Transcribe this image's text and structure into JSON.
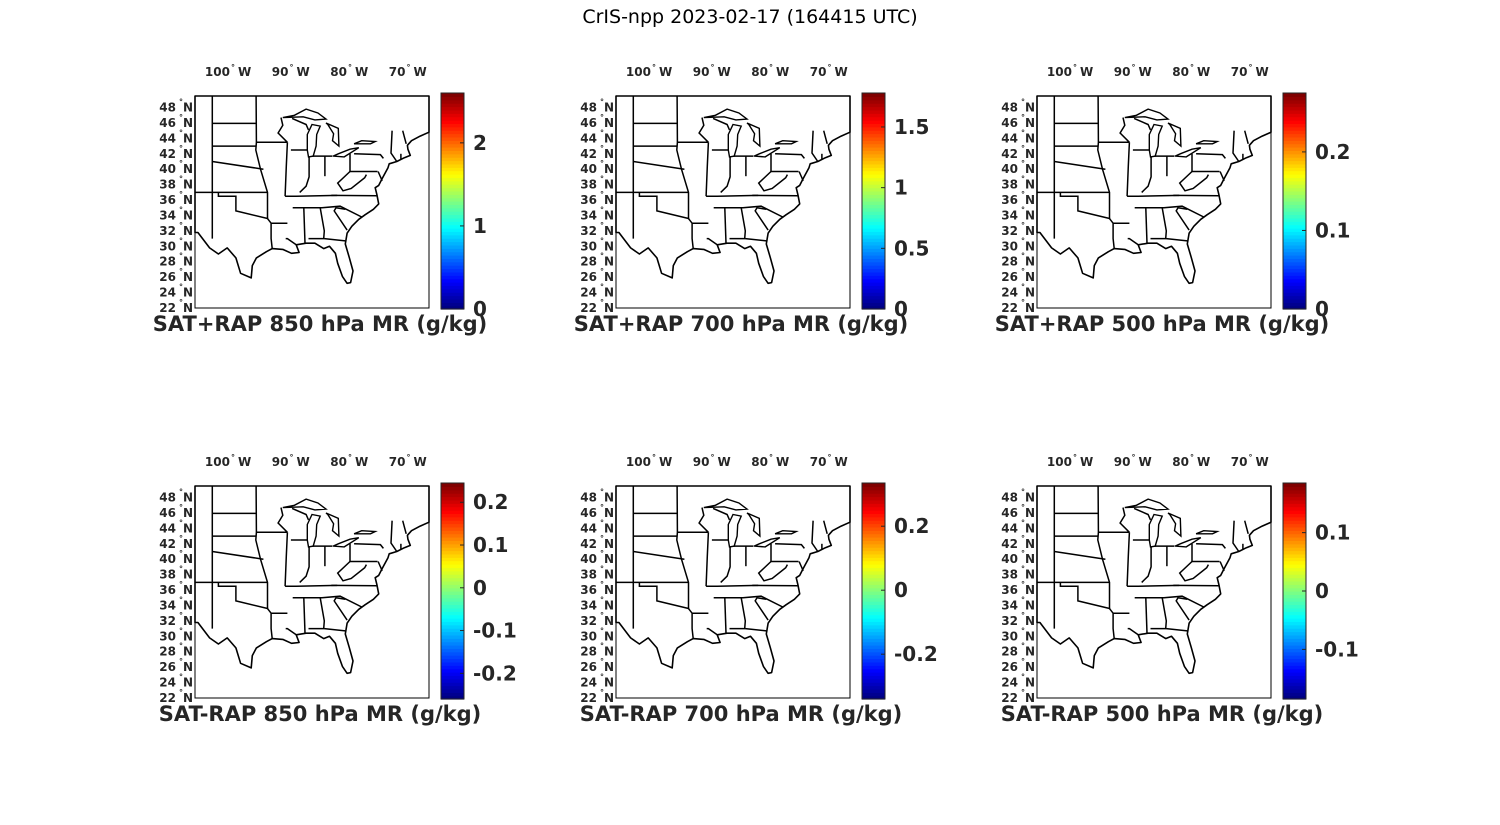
{
  "figure": {
    "title": "CrIS-npp 2023-02-17 (164415 UTC)"
  },
  "axes_labels": {
    "lon_ticks": [
      "100",
      "90",
      "80",
      "70"
    ],
    "lon_suffix": "W",
    "lat_ticks": [
      "48",
      "46",
      "44",
      "42",
      "40",
      "38",
      "36",
      "34",
      "32",
      "30",
      "28",
      "26",
      "24",
      "22"
    ],
    "lat_suffix": "N",
    "degree_mark": "°"
  },
  "colormap": "jet",
  "map_colors": {
    "land_fill": "#ffffff",
    "boundary_line": "#000000"
  },
  "panels": [
    {
      "title": "SAT+RAP 850 hPa MR (g/kg)",
      "colorbar": {
        "min": 0,
        "max": 2.6,
        "ticks": [
          "0",
          "1",
          "2"
        ],
        "tick_values": [
          0,
          1,
          2
        ]
      }
    },
    {
      "title": "SAT+RAP 700 hPa MR (g/kg)",
      "colorbar": {
        "min": 0,
        "max": 1.78,
        "ticks": [
          "0",
          "0.5",
          "1",
          "1.5"
        ],
        "tick_values": [
          0,
          0.5,
          1,
          1.5
        ]
      }
    },
    {
      "title": "SAT+RAP 500 hPa MR (g/kg)",
      "colorbar": {
        "min": 0,
        "max": 0.275,
        "ticks": [
          "0",
          "0.1",
          "0.2"
        ],
        "tick_values": [
          0,
          0.1,
          0.2
        ]
      }
    },
    {
      "title": "SAT-RAP 850 hPa MR (g/kg)",
      "colorbar": {
        "min": -0.26,
        "max": 0.245,
        "ticks": [
          "-0.2",
          "-0.1",
          "0",
          "0.1",
          "0.2"
        ],
        "tick_values": [
          -0.2,
          -0.1,
          0,
          0.1,
          0.2
        ]
      }
    },
    {
      "title": "SAT-RAP 700 hPa MR (g/kg)",
      "colorbar": {
        "min": -0.34,
        "max": 0.335,
        "ticks": [
          "-0.2",
          "0",
          "0.2"
        ],
        "tick_values": [
          -0.2,
          0,
          0.2
        ]
      }
    },
    {
      "title": "SAT-RAP 500 hPa MR (g/kg)",
      "colorbar": {
        "min": -0.185,
        "max": 0.185,
        "ticks": [
          "-0.1",
          "0",
          "0.1"
        ],
        "tick_values": [
          -0.1,
          0,
          0.1
        ]
      }
    }
  ]
}
